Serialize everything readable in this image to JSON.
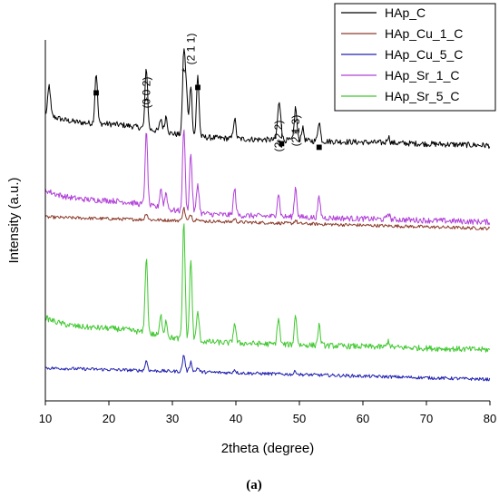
{
  "chart_data": {
    "type": "line",
    "title": "",
    "xlabel": "2theta (degree)",
    "ylabel": "Intensity (a.u.)",
    "xlim": [
      10,
      80
    ],
    "ylim": [
      0,
      100
    ],
    "x_ticks": [
      "10",
      "20",
      "30",
      "40",
      "50",
      "60",
      "70",
      "80"
    ],
    "y_ticks": "none",
    "grid": false,
    "legend_position": "top-right",
    "caption": "(a)",
    "series": [
      {
        "name": "HAp_C",
        "color": "#000000",
        "baseline": 73.9,
        "peaks": [
          [
            10.6,
            8.2
          ],
          [
            18.0,
            14.0
          ],
          [
            25.9,
            16.9
          ],
          [
            28.2,
            3.5
          ],
          [
            29.0,
            4.5
          ],
          [
            31.8,
            22.4
          ],
          [
            32.2,
            12.0
          ],
          [
            32.9,
            14.2
          ],
          [
            34.0,
            16.9
          ],
          [
            39.8,
            5.5
          ],
          [
            46.7,
            7.3
          ],
          [
            47.0,
            6.0
          ],
          [
            49.4,
            9.1
          ],
          [
            50.5,
            3.5
          ],
          [
            53.1,
            5.5
          ],
          [
            64.0,
            1.8
          ]
        ]
      },
      {
        "name": "HAp_Cu_1_C",
        "color": "#8B3A2A",
        "baseline": 50.9,
        "peaks": [
          [
            25.9,
            1.8
          ],
          [
            31.8,
            3.5
          ],
          [
            32.9,
            1.8
          ],
          [
            34.0,
            0.9
          ],
          [
            39.8,
            0.9
          ],
          [
            49.4,
            0.9
          ]
        ]
      },
      {
        "name": "HAp_Cu_5_C",
        "color": "#2020B0",
        "baseline": 9.1,
        "peaks": [
          [
            25.9,
            2.7
          ],
          [
            31.8,
            4.6
          ],
          [
            32.9,
            2.7
          ],
          [
            34.0,
            1.2
          ],
          [
            39.8,
            0.9
          ],
          [
            49.4,
            0.9
          ]
        ]
      },
      {
        "name": "HAp_Sr_1_C",
        "color": "#B040D8",
        "baseline": 52.7,
        "peaks": [
          [
            25.9,
            20.1
          ],
          [
            28.2,
            5.5
          ],
          [
            29.0,
            4.5
          ],
          [
            31.8,
            23.3
          ],
          [
            32.9,
            16.4
          ],
          [
            34.0,
            8.2
          ],
          [
            39.8,
            7.3
          ],
          [
            46.7,
            6.4
          ],
          [
            49.4,
            8.2
          ],
          [
            53.1,
            5.5
          ],
          [
            64.0,
            1.8
          ]
        ]
      },
      {
        "name": "HAp_Sr_5_C",
        "color": "#40C830",
        "baseline": 17.3,
        "peaks": [
          [
            25.9,
            21.0
          ],
          [
            28.2,
            5.5
          ],
          [
            29.0,
            4.5
          ],
          [
            31.8,
            32.8
          ],
          [
            32.9,
            22.4
          ],
          [
            34.0,
            8.2
          ],
          [
            39.8,
            5.5
          ],
          [
            46.7,
            7.3
          ],
          [
            49.4,
            8.2
          ],
          [
            53.1,
            5.5
          ],
          [
            64.0,
            1.8
          ]
        ]
      }
    ],
    "annotations": [
      {
        "text": "(0 0 2)",
        "x": 25.9,
        "rotated": true
      },
      {
        "text": "*",
        "x": 25.9
      },
      {
        "text": "*",
        "x": 31.8
      },
      {
        "text": "(2 1 1)",
        "x": 32.9,
        "rotated": true
      },
      {
        "text": "■",
        "x": 18.0
      },
      {
        "text": "■",
        "x": 34.0
      },
      {
        "text": "(2 2 2)",
        "x": 46.7,
        "rotated": true
      },
      {
        "text": "*",
        "x": 46.7
      },
      {
        "text": "■",
        "x": 47.2
      },
      {
        "text": "(2 1 3)",
        "x": 49.4,
        "rotated": true
      },
      {
        "text": "*",
        "x": 49.4
      },
      {
        "text": "■",
        "x": 53.1
      }
    ]
  }
}
